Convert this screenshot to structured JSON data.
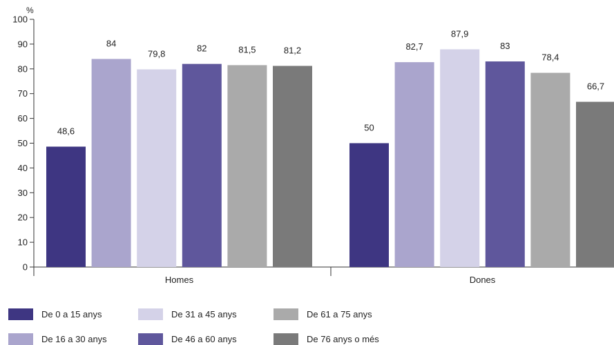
{
  "chart_data": {
    "type": "bar",
    "unit_label": "%",
    "categories": [
      "Homes",
      "Dones"
    ],
    "series": [
      {
        "name": "De 0 a 15 anys",
        "color": "#3e3682",
        "values": [
          48.6,
          50
        ],
        "labels": [
          "48,6",
          "50"
        ]
      },
      {
        "name": "De 16 a 30 anys",
        "color": "#aaa5cd",
        "values": [
          84,
          82.7
        ],
        "labels": [
          "84",
          "82,7"
        ]
      },
      {
        "name": "De 31 a 45 anys",
        "color": "#d4d2e8",
        "values": [
          79.8,
          87.9
        ],
        "labels": [
          "79,8",
          "87,9"
        ]
      },
      {
        "name": "De 46 a 60 anys",
        "color": "#5f579c",
        "values": [
          82,
          83
        ],
        "labels": [
          "82",
          "83"
        ]
      },
      {
        "name": "De 61 a 75 anys",
        "color": "#aaaaaa",
        "values": [
          81.5,
          78.4
        ],
        "labels": [
          "81,5",
          "78,4"
        ]
      },
      {
        "name": "De 76 anys o més",
        "color": "#7a7a7a",
        "values": [
          81.2,
          66.7
        ],
        "labels": [
          "81,2",
          "66,7"
        ]
      }
    ],
    "y_ticks": [
      "0",
      "10",
      "20",
      "30",
      "40",
      "50",
      "60",
      "70",
      "80",
      "90",
      "100"
    ],
    "ylim": [
      0,
      100
    ],
    "grid": false,
    "legend_position": "bottom"
  }
}
